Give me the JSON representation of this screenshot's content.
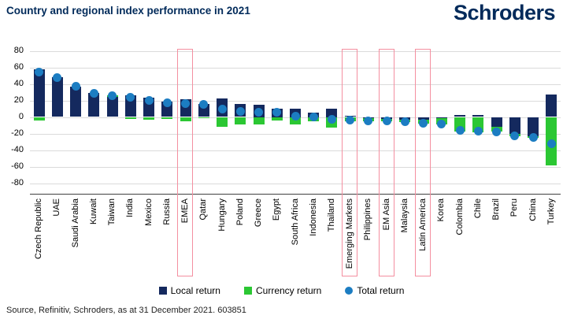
{
  "header": {
    "title": "Country and regional index performance in 2021",
    "logo": "Schroders"
  },
  "source": {
    "text": "Source, Refinitiv, Schroders, as at 31 December 2021. 603851"
  },
  "colors": {
    "navy": "#14295E",
    "green": "#2BC733",
    "dot_blue": "#1C7DC2",
    "pink": "#F48FA0",
    "grid": "#DBDBDB",
    "title_navy": "#002A5A"
  },
  "chart_data": {
    "type": "bar",
    "title": "Country and regional index performance in 2021",
    "xlabel": "",
    "ylabel": "",
    "ylim": [
      -80,
      80
    ],
    "ytick_interval": 20,
    "grid": true,
    "legend_position": "bottom",
    "categories": [
      "Czech Republic",
      "UAE",
      "Saudi Arabia",
      "Kuwait",
      "Taiwan",
      "India",
      "Mexico",
      "Russia",
      "EMEA",
      "Qatar",
      "Hungary",
      "Poland",
      "Greece",
      "Egypt",
      "South Africa",
      "Indonesia",
      "Thailand",
      "Emerging Markets",
      "Philippines",
      "EM Asia",
      "Malaysia",
      "Latin America",
      "Korea",
      "Colombia",
      "Chile",
      "Brazil",
      "Peru",
      "China",
      "Turkey"
    ],
    "highlighted_categories": [
      "EMEA",
      "Emerging Markets",
      "EM Asia",
      "Latin America"
    ],
    "series": [
      {
        "name": "Local return",
        "type": "bar",
        "color_key": "navy",
        "values": [
          58,
          48,
          37,
          29,
          24,
          26,
          23,
          19,
          21,
          16,
          22,
          16,
          15,
          10,
          10,
          5,
          10,
          1,
          -1,
          -2,
          -3,
          -3,
          -1,
          2,
          2,
          -12,
          -20,
          -23,
          27
        ]
      },
      {
        "name": "Currency return",
        "type": "bar",
        "color_key": "green",
        "values": [
          -4,
          0,
          0,
          0,
          2,
          -2,
          -3,
          -2,
          -5,
          -1,
          -12,
          -9,
          -9,
          -4,
          -9,
          -5,
          -13,
          -5,
          -4,
          -3,
          -3,
          -5,
          -8,
          -18,
          -19,
          -6,
          -3,
          -2,
          -59
        ]
      },
      {
        "name": "Total return",
        "type": "point",
        "color_key": "dot_blue",
        "values": [
          54,
          48,
          37,
          29,
          26,
          24,
          20,
          17,
          16,
          15,
          10,
          7,
          6,
          6,
          1,
          0,
          -3,
          -4,
          -5,
          -5,
          -6,
          -8,
          -9,
          -16,
          -17,
          -18,
          -23,
          -25,
          -32
        ]
      }
    ]
  }
}
